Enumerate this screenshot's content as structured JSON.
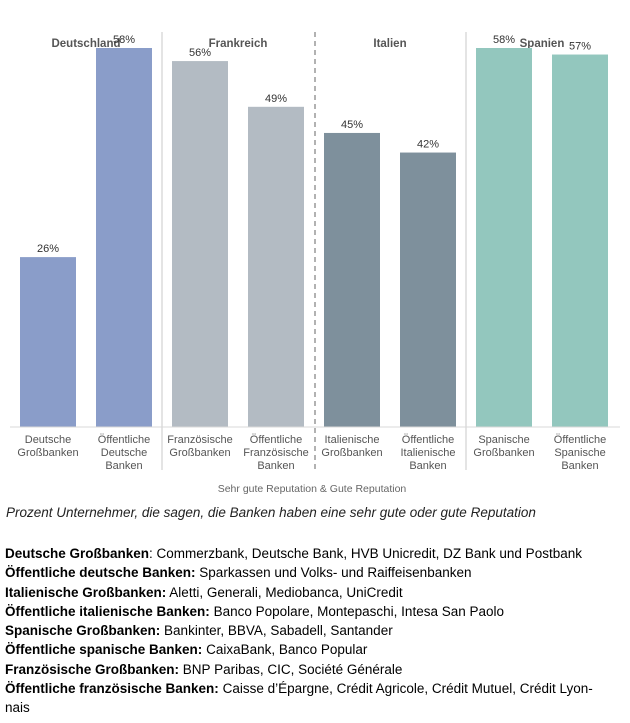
{
  "chart_data": {
    "type": "bar",
    "groups": [
      {
        "label": "Deutschland",
        "span": [
          0,
          1
        ]
      },
      {
        "label": "Frankreich",
        "span": [
          2,
          3
        ]
      },
      {
        "label": "Italien",
        "span": [
          4,
          5
        ]
      },
      {
        "label": "Spanien",
        "span": [
          6,
          7
        ]
      }
    ],
    "categories": [
      [
        "Deutsche",
        "Großbanken"
      ],
      [
        "Öffentliche",
        "Deutsche",
        "Banken"
      ],
      [
        "Französische",
        "Großbanken"
      ],
      [
        "Öffentliche",
        "Französische",
        "Banken"
      ],
      [
        "Italienische",
        "Großbanken"
      ],
      [
        "Öffentliche",
        "Italienische",
        "Banken"
      ],
      [
        "Spanische",
        "Großbanken"
      ],
      [
        "Öffentliche",
        "Spanische",
        "Banken"
      ]
    ],
    "values": [
      26,
      58,
      56,
      49,
      45,
      42,
      58,
      57
    ],
    "value_labels": [
      "26%",
      "58%",
      "56%",
      "49%",
      "45%",
      "42%",
      "58%",
      "57%"
    ],
    "bar_colors": [
      "#8a9dc9",
      "#8a9dc9",
      "#b3bbc3",
      "#b3bbc3",
      "#7e909c",
      "#7e909c",
      "#93c7be",
      "#93c7be"
    ],
    "separator_styles": [
      "solid",
      "dashed",
      "solid"
    ],
    "xlabel": "Sehr gute Reputation & Gute Reputation",
    "ylabel": "",
    "ylim": [
      0,
      60
    ],
    "grid": false,
    "legend": "none"
  },
  "caption": "Prozent Unternehmer, die sagen, die Banken haben eine sehr gute oder gute Reputation",
  "legend_rows": [
    {
      "bold": "Deutsche Großbanken",
      "text": ": Commerzbank, Deutsche Bank, HVB Unicredit, DZ Bank und Postbank"
    },
    {
      "bold": "Öffentliche deutsche Banken:",
      "text": " Sparkassen und Volks- und Raiffeisenbanken"
    },
    {
      "bold": "Italienische Großbanken:",
      "text": " Aletti, Generali, Mediobanca, UniCredit"
    },
    {
      "bold": "Öffentliche italienische Banken:",
      "text": " Banco Popolare, Montepaschi, Intesa San Paolo"
    },
    {
      "bold": "Spanische Großbanken:",
      "text": " Bankinter, BBVA, Sabadell, Santander"
    },
    {
      "bold": "Öffentliche spanische Banken:",
      "text": " CaixaBank, Banco Popular"
    },
    {
      "bold": "Französische Großbanken:",
      "text": " BNP Paribas, CIC, Société Générale"
    },
    {
      "bold": "Öffentliche französische Banken:",
      "text": " Caisse d’Épargne, Crédit Agricole, Crédit Mutuel, Crédit Lyon-"
    },
    {
      "bold": "",
      "text": "nais"
    }
  ]
}
